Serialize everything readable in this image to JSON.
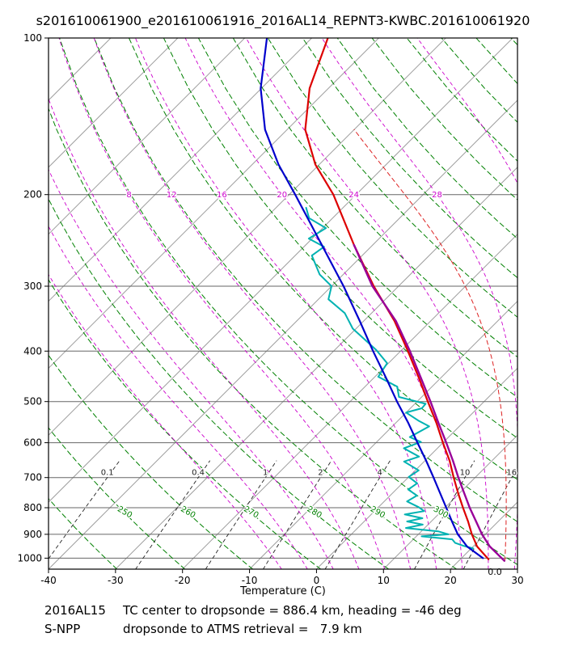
{
  "chart_data": {
    "type": "line",
    "variant": "skew-t-log-p-sounding",
    "title": "s201610061900_e201610061916_2016AL14_REPNT3-KWBC.201610061920",
    "xlabel": "Temperature (C)",
    "x_range": [
      -40,
      30
    ],
    "pressure_range": [
      100,
      1050
    ],
    "x_ticks": [
      -40,
      -30,
      -20,
      -10,
      0,
      10,
      20,
      30
    ],
    "pressure_ticks": [
      100,
      200,
      300,
      400,
      500,
      600,
      700,
      800,
      900,
      1000
    ],
    "corner_label": "0.0",
    "grid": {
      "isobar_color": "#666666",
      "isotherms": {
        "min": -120,
        "max": 30,
        "step": 10,
        "color": "#9e9e9e"
      },
      "dry_adiabats": {
        "theta_min": 230,
        "theta_max": 430,
        "step": 10,
        "color": "#008000",
        "labels": [
          250,
          260,
          270,
          280,
          290,
          300
        ],
        "label_pressure": 815
      },
      "moist_adiabats": {
        "values": [
          -8,
          -4,
          0,
          4,
          8,
          12,
          16,
          20,
          24,
          28,
          32,
          36
        ],
        "color": "#cc00cc",
        "labels": [
          8,
          12,
          16,
          20,
          24,
          28,
          32
        ],
        "label_pressure": 200
      },
      "mixing_ratio": {
        "values": [
          0.1,
          0.4,
          1,
          2,
          4,
          10,
          16
        ],
        "color": "#222222",
        "label_pressure": 700
      }
    },
    "series": [
      {
        "name": "parcel-moist-adiabat",
        "color": "#dd2222",
        "width": 1,
        "dash": "5,4",
        "moist_adiabat_from": 26.5
      },
      {
        "name": "profile-cyan",
        "color": "#00b2b2",
        "width": 2,
        "points": [
          [
            212,
            -55.5
          ],
          [
            222,
            -53.5
          ],
          [
            232,
            -49.5
          ],
          [
            243,
            -50.5
          ],
          [
            252,
            -47.0
          ],
          [
            262,
            -47.5
          ],
          [
            285,
            -43.5
          ],
          [
            300,
            -40.0
          ],
          [
            318,
            -38.5
          ],
          [
            338,
            -34.0
          ],
          [
            362,
            -30.5
          ],
          [
            398,
            -23.8
          ],
          [
            422,
            -20.2
          ],
          [
            448,
            -19.5
          ],
          [
            468,
            -15.2
          ],
          [
            490,
            -13.4
          ],
          [
            505,
            -8.4
          ],
          [
            515,
            -8.3
          ],
          [
            525,
            -10.0
          ],
          [
            545,
            -6.8
          ],
          [
            558,
            -4.5
          ],
          [
            585,
            -5.8
          ],
          [
            598,
            -3.4
          ],
          [
            615,
            -5.0
          ],
          [
            638,
            -1.5
          ],
          [
            652,
            -3.0
          ],
          [
            678,
            0.5
          ],
          [
            698,
            0.0
          ],
          [
            718,
            2.2
          ],
          [
            738,
            1.8
          ],
          [
            758,
            4.0
          ],
          [
            778,
            3.4
          ],
          [
            798,
            6.0
          ],
          [
            812,
            7.4
          ],
          [
            824,
            5.0
          ],
          [
            838,
            8.2
          ],
          [
            850,
            6.4
          ],
          [
            862,
            9.2
          ],
          [
            875,
            7.2
          ],
          [
            888,
            12.5
          ],
          [
            900,
            14.5
          ],
          [
            908,
            10.8
          ],
          [
            920,
            15.8
          ],
          [
            935,
            16.8
          ],
          [
            948,
            18.6
          ],
          [
            958,
            20.3
          ]
        ]
      },
      {
        "name": "profile-blue",
        "color": "#0000cc",
        "width": 2.2,
        "points": [
          [
            100,
            -86.7
          ],
          [
            125,
            -80.1
          ],
          [
            150,
            -73.3
          ],
          [
            175,
            -66.1
          ],
          [
            200,
            -59.1
          ],
          [
            250,
            -47.6
          ],
          [
            300,
            -38.2
          ],
          [
            350,
            -30.6
          ],
          [
            400,
            -24.1
          ],
          [
            450,
            -18.2
          ],
          [
            500,
            -13.0
          ],
          [
            550,
            -8.1
          ],
          [
            600,
            -3.8
          ],
          [
            650,
            0.2
          ],
          [
            700,
            3.8
          ],
          [
            750,
            7.1
          ],
          [
            800,
            10.2
          ],
          [
            850,
            13.1
          ],
          [
            900,
            15.9
          ],
          [
            950,
            19.1
          ],
          [
            1000,
            23.2
          ]
        ]
      },
      {
        "name": "profile-red",
        "color": "#dd0000",
        "width": 2.2,
        "points": [
          [
            100,
            -77.6
          ],
          [
            125,
            -72.8
          ],
          [
            150,
            -67.3
          ],
          [
            175,
            -60.6
          ],
          [
            200,
            -53.4
          ],
          [
            250,
            -42.8
          ],
          [
            300,
            -33.7
          ],
          [
            350,
            -25.4
          ],
          [
            400,
            -18.9
          ],
          [
            450,
            -13.3
          ],
          [
            500,
            -8.4
          ],
          [
            550,
            -3.9
          ],
          [
            600,
            0.0
          ],
          [
            650,
            3.7
          ],
          [
            700,
            6.8
          ],
          [
            750,
            9.8
          ],
          [
            800,
            12.7
          ],
          [
            850,
            15.5
          ],
          [
            900,
            18.0
          ],
          [
            950,
            20.6
          ],
          [
            1005,
            24.2
          ]
        ]
      },
      {
        "name": "profile-magenta",
        "color": "#990099",
        "width": 2.4,
        "points": [
          [
            250,
            -42.8
          ],
          [
            300,
            -33.9
          ],
          [
            350,
            -25.2
          ],
          [
            400,
            -18.6
          ],
          [
            450,
            -13.0
          ],
          [
            500,
            -8.0
          ],
          [
            550,
            -3.6
          ],
          [
            600,
            0.5
          ],
          [
            650,
            4.2
          ],
          [
            700,
            7.5
          ],
          [
            750,
            10.7
          ],
          [
            800,
            13.7
          ],
          [
            850,
            16.7
          ],
          [
            900,
            19.5
          ],
          [
            950,
            22.5
          ],
          [
            1012,
            26.8
          ]
        ]
      }
    ],
    "footer": {
      "storm_id": "2016AL15",
      "line1": "TC center to dropsonde = 886.4 km, heading = -46 deg",
      "satellite_id": "S-NPP",
      "line2": "dropsonde to ATMS retrieval =   7.9 km"
    }
  }
}
